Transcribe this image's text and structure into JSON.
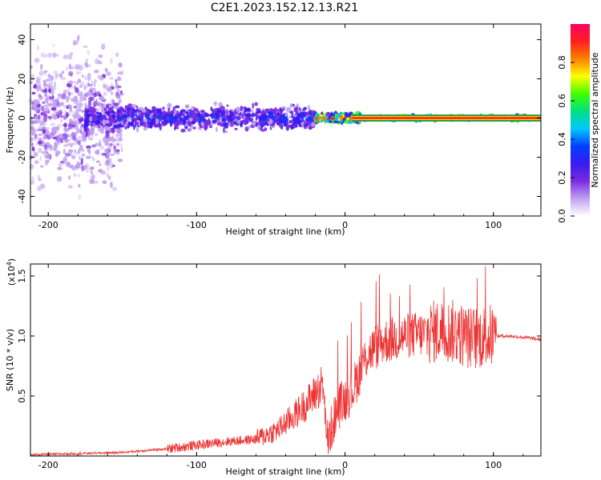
{
  "title": "C2E1.2023.152.12.13.R21",
  "chart_data": [
    {
      "type": "heatmap",
      "name": "spectrogram",
      "xlabel": "Height of straight line (km)",
      "ylabel": "Frequency (Hz)",
      "xlim": [
        -212,
        132
      ],
      "ylim": [
        -50,
        48
      ],
      "xticks": [
        -200,
        -100,
        0,
        100
      ],
      "yticks": [
        -40,
        -20,
        0,
        20,
        40
      ],
      "description_bands": [
        {
          "x_from": -212,
          "x_to": -150,
          "spread_hz": 48,
          "amplitude": 0.15
        },
        {
          "x_from": -175,
          "x_to": -20,
          "spread_hz": 8,
          "amplitude": 0.3
        },
        {
          "x_from": -20,
          "x_to": 10,
          "spread_hz": 3,
          "amplitude": 0.8
        },
        {
          "x_from": 5,
          "x_to": 132,
          "spread_hz": 1.5,
          "amplitude": 0.95
        }
      ],
      "colorbar": {
        "label": "Normalized spectral amplitude",
        "range": [
          0.0,
          1.0
        ],
        "ticks": [
          "0.0",
          "0.2",
          "0.4",
          "0.6",
          "0.8"
        ],
        "colors": [
          "#ffffff",
          "#c0a0f0",
          "#7a2ce0",
          "#3a1af0",
          "#0040ff",
          "#00c8ff",
          "#00e080",
          "#40ff00",
          "#ffff00",
          "#ff8000",
          "#ff2020",
          "#ff0060"
        ]
      }
    },
    {
      "type": "line",
      "name": "snr",
      "xlabel": "Height of straight line (km)",
      "ylabel": "SNR (10 * v/v)",
      "yscale_label": "(x10",
      "yscale_exp": "4",
      "xlim": [
        -212,
        132
      ],
      "ylim": [
        0.0,
        1.6
      ],
      "xticks": [
        -200,
        -100,
        0,
        100
      ],
      "yticks": [
        "0.5",
        "1.0",
        "1.5"
      ],
      "ytick_values": [
        0.5,
        1.0,
        1.5
      ],
      "series_color": "#ee3333",
      "series": [
        {
          "name": "SNR",
          "x": [
            -212,
            -180,
            -150,
            -120,
            -100,
            -80,
            -60,
            -45,
            -35,
            -25,
            -15,
            -12,
            -5,
            5,
            15,
            25,
            40,
            55,
            65,
            75,
            85,
            95,
            100,
            102,
            110,
            120,
            132
          ],
          "y": [
            0.01,
            0.02,
            0.03,
            0.06,
            0.09,
            0.12,
            0.14,
            0.22,
            0.33,
            0.45,
            0.6,
            0.12,
            0.4,
            0.55,
            0.85,
            0.95,
            1.0,
            1.02,
            1.05,
            1.03,
            0.98,
            1.0,
            1.0,
            1.0,
            1.0,
            0.99,
            0.97
          ]
        }
      ]
    }
  ]
}
